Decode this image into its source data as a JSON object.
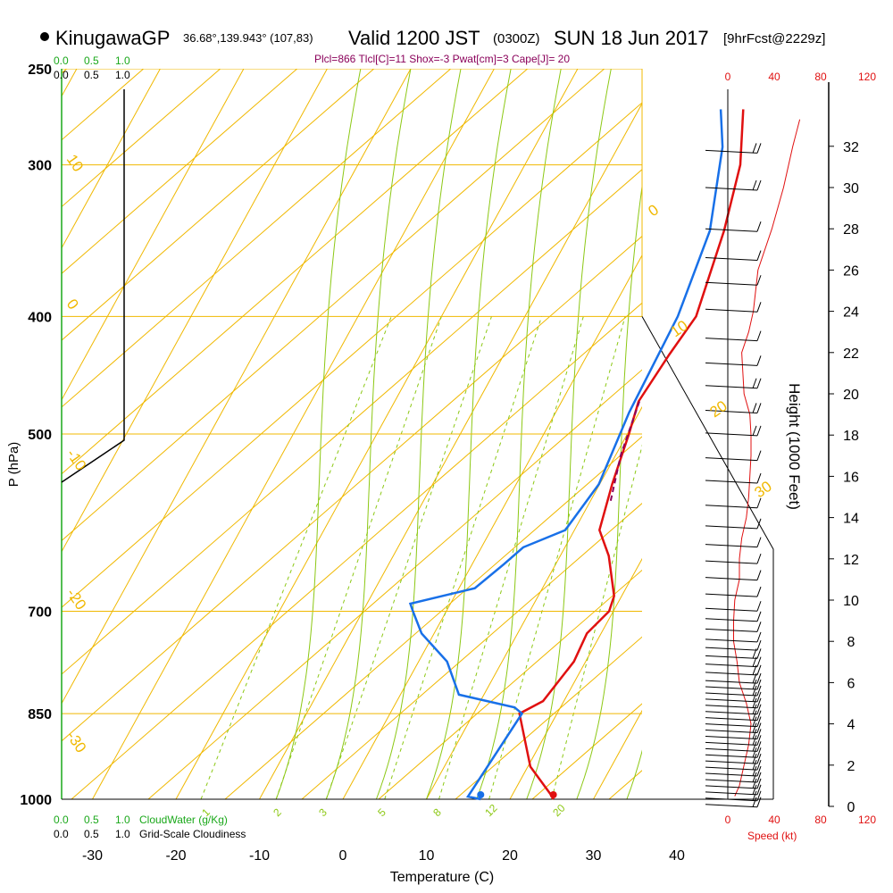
{
  "header": {
    "station": "KinugawaGP",
    "coords": "36.68°,139.943° (107,83)",
    "valid": "Valid 1200 JST",
    "utc": "(0300Z)",
    "date": "SUN 18 Jun 2017",
    "fcst": "[9hrFcst@2229z]"
  },
  "indices_line": "Plcl=866 Tlcl[C]=11 Shox=-3 Pwat[cm]=3 Cape[J]= 20",
  "colors": {
    "temp": "#e01010",
    "dew": "#1870e8",
    "isotherm": "#f0b800",
    "moist": "#8cc814",
    "cloudwater": "#1aa81a",
    "parcel": "#8a005a",
    "speed": "#e01010"
  },
  "labels": {
    "xlabel": "Temperature (C)",
    "ylabel": "P (hPa)",
    "height_label": "Height (1000 Feet)",
    "speed_label": "Speed (kt)",
    "cloudwater_label": "CloudWater (g/Kg)",
    "cloudiness_label": "Grid-Scale Cloudiness",
    "cw_ticks": [
      "0.0",
      "0.5",
      "1.0"
    ],
    "cl_ticks": [
      "0.0",
      "0.5",
      "1.0"
    ]
  },
  "chart_data": {
    "type": "line",
    "title": "KinugawaGP sounding, Valid 1200 JST SUN 18 Jun 2017",
    "xlabel": "Temperature (C)",
    "ylabel": "P (hPa)",
    "xlim": [
      -35,
      45
    ],
    "pressure_levels": [
      1000,
      850,
      700,
      500,
      400,
      300,
      250
    ],
    "temp_ticks": [
      -30,
      -20,
      -10,
      0,
      10,
      20,
      30,
      40
    ],
    "isotherm_labels": [
      {
        "text": "0"
      },
      {
        "text": "10"
      },
      {
        "text": "20"
      },
      {
        "text": "30"
      },
      {
        "text": "10"
      },
      {
        "text": "0"
      },
      {
        "text": "-10"
      },
      {
        "text": "-20"
      },
      {
        "text": "-30"
      }
    ],
    "mixing_ratio_labels": [
      "1",
      "2",
      "3",
      "5",
      "8",
      "12",
      "20"
    ],
    "series": [
      {
        "name": "temperature",
        "points": [
          [
            25.2,
            1000
          ],
          [
            24.5,
            990
          ],
          [
            20.3,
            940
          ],
          [
            15.5,
            850
          ],
          [
            17.5,
            830
          ],
          [
            18.6,
            770
          ],
          [
            18.3,
            730
          ],
          [
            19.5,
            700
          ],
          [
            19.1,
            680
          ],
          [
            15.8,
            630
          ],
          [
            13,
            600
          ],
          [
            11.5,
            550
          ],
          [
            10.2,
            500
          ],
          [
            9.2,
            470
          ],
          [
            9.8,
            430
          ],
          [
            10.5,
            400
          ],
          [
            8.2,
            340
          ],
          [
            5.8,
            300
          ],
          [
            2.5,
            270
          ]
        ]
      },
      {
        "name": "dewpoint",
        "points": [
          [
            16.5,
            1000
          ],
          [
            14.8,
            995
          ],
          [
            15.3,
            920
          ],
          [
            15.8,
            850
          ],
          [
            14.5,
            840
          ],
          [
            7,
            820
          ],
          [
            3.4,
            770
          ],
          [
            -1.5,
            730
          ],
          [
            -4,
            700
          ],
          [
            -4.8,
            690
          ],
          [
            1.9,
            670
          ],
          [
            3.8,
            640
          ],
          [
            5,
            620
          ],
          [
            8.9,
            600
          ],
          [
            9.9,
            550
          ],
          [
            8.8,
            480
          ],
          [
            8.3,
            400
          ],
          [
            6.5,
            340
          ],
          [
            2.5,
            290
          ],
          [
            -0.2,
            270
          ]
        ]
      },
      {
        "name": "parcel",
        "points": [
          [
            9.3,
            470
          ],
          [
            10.6,
            520
          ],
          [
            12.5,
            570
          ]
        ]
      }
    ],
    "surface_points": {
      "temp": 25.2,
      "dew": 16.5
    },
    "right_panel": {
      "height_ticks_kft": [
        0,
        2,
        4,
        6,
        8,
        10,
        12,
        14,
        16,
        18,
        20,
        22,
        24,
        26,
        28,
        30,
        32
      ],
      "speed_ticks_kt": [
        0,
        40,
        80,
        120
      ],
      "speed_profile": [
        [
          0.5,
          6
        ],
        [
          1,
          10
        ],
        [
          2,
          14
        ],
        [
          3,
          18
        ],
        [
          4,
          20
        ],
        [
          5,
          16
        ],
        [
          6,
          10
        ],
        [
          7,
          8
        ],
        [
          8,
          5
        ],
        [
          9,
          5
        ],
        [
          10,
          6
        ],
        [
          11,
          10
        ],
        [
          12,
          10
        ],
        [
          13,
          12
        ],
        [
          14,
          16
        ],
        [
          15,
          18
        ],
        [
          16,
          19
        ],
        [
          17,
          20
        ],
        [
          18,
          20
        ],
        [
          19,
          19
        ],
        [
          20,
          14
        ],
        [
          21,
          13
        ],
        [
          22,
          12
        ],
        [
          23,
          18
        ],
        [
          24,
          22
        ],
        [
          26,
          26
        ],
        [
          28,
          38
        ],
        [
          30,
          48
        ],
        [
          32,
          56
        ],
        [
          33.3,
          62
        ]
      ],
      "wind_barb_heights_kft": [
        31.8,
        30,
        28,
        26.6,
        25.4,
        24.1,
        22.7,
        21.5,
        20.4,
        19.2,
        18.1,
        16.9,
        15.8,
        14.6,
        13.6,
        12.7,
        11.9,
        11.1,
        10.3,
        9.6,
        9.1,
        8.6,
        8.1,
        7.7,
        7.3,
        6.9,
        6.5,
        6.1,
        5.8,
        5.5,
        5.2,
        4.9,
        4.6,
        4.3,
        4,
        3.7,
        3.4,
        3.1,
        2.8,
        2.5,
        2.2,
        1.9,
        1.6,
        1.3,
        1,
        0.7,
        0.4,
        0.1
      ],
      "wind_barb_speeds_kt": [
        15,
        15,
        10,
        10,
        10,
        10,
        10,
        10,
        15,
        15,
        15,
        10,
        10,
        10,
        10,
        10,
        10,
        10,
        10,
        10,
        10,
        10,
        10,
        10,
        15,
        15,
        15,
        15,
        15,
        20,
        20,
        20,
        20,
        20,
        20,
        20,
        20,
        20,
        20,
        20,
        20,
        20,
        20,
        20,
        20,
        20,
        20,
        20
      ]
    }
  }
}
